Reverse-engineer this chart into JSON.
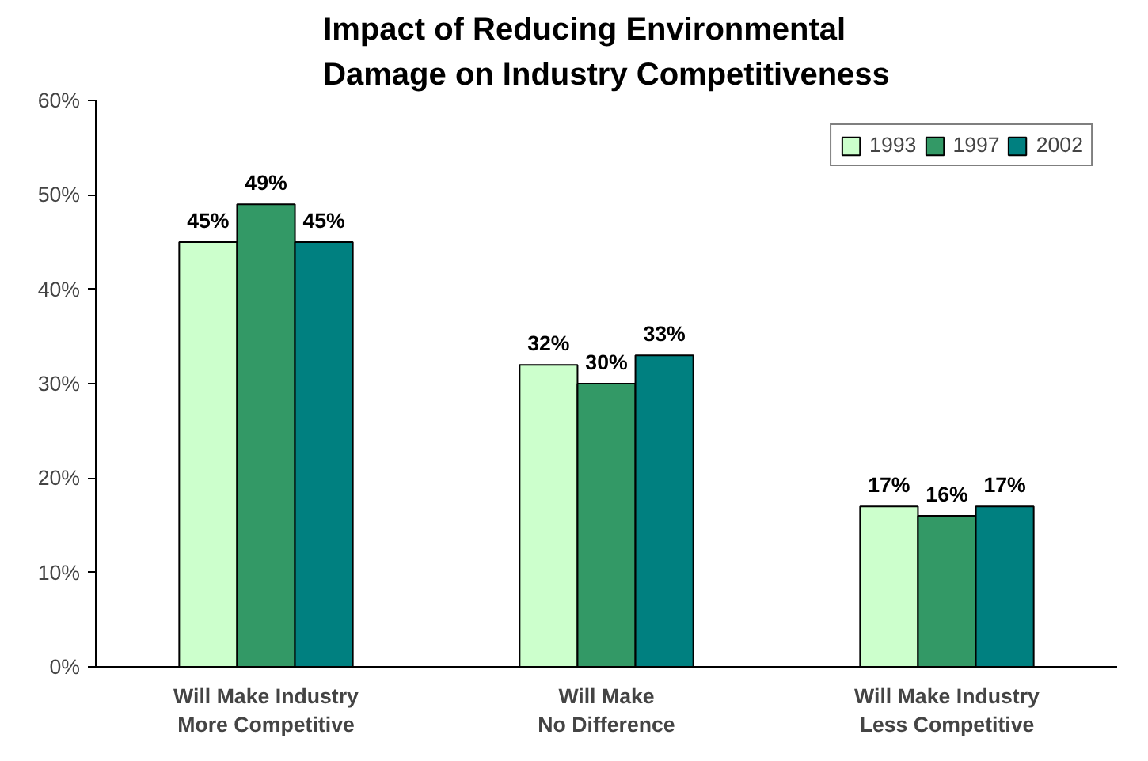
{
  "chart_data": {
    "type": "bar",
    "title": "Impact of Reducing Environmental\nDamage on Industry Competitiveness",
    "categories": [
      "Will Make Industry\nMore Competitive",
      "Will Make\nNo Difference",
      "Will Make Industry\nLess Competitive"
    ],
    "series": [
      {
        "name": "1993",
        "color": "#ccffcc",
        "values": [
          45,
          32,
          17
        ],
        "value_labels": [
          "45%",
          "32%",
          "17%"
        ]
      },
      {
        "name": "1997",
        "color": "#339966",
        "values": [
          49,
          30,
          16
        ],
        "value_labels": [
          "49%",
          "30%",
          "16%"
        ]
      },
      {
        "name": "2002",
        "color": "#008080",
        "values": [
          45,
          33,
          17
        ],
        "value_labels": [
          "45%",
          "33%",
          "17%"
        ]
      }
    ],
    "ylim": [
      0,
      60
    ],
    "yticks": [
      {
        "value": 0,
        "label": "0%"
      },
      {
        "value": 10,
        "label": "10%"
      },
      {
        "value": 20,
        "label": "20%"
      },
      {
        "value": 30,
        "label": "30%"
      },
      {
        "value": 40,
        "label": "40%"
      },
      {
        "value": 50,
        "label": "50%"
      },
      {
        "value": 60,
        "label": "60%"
      }
    ],
    "grid": false,
    "legend": "top right"
  }
}
